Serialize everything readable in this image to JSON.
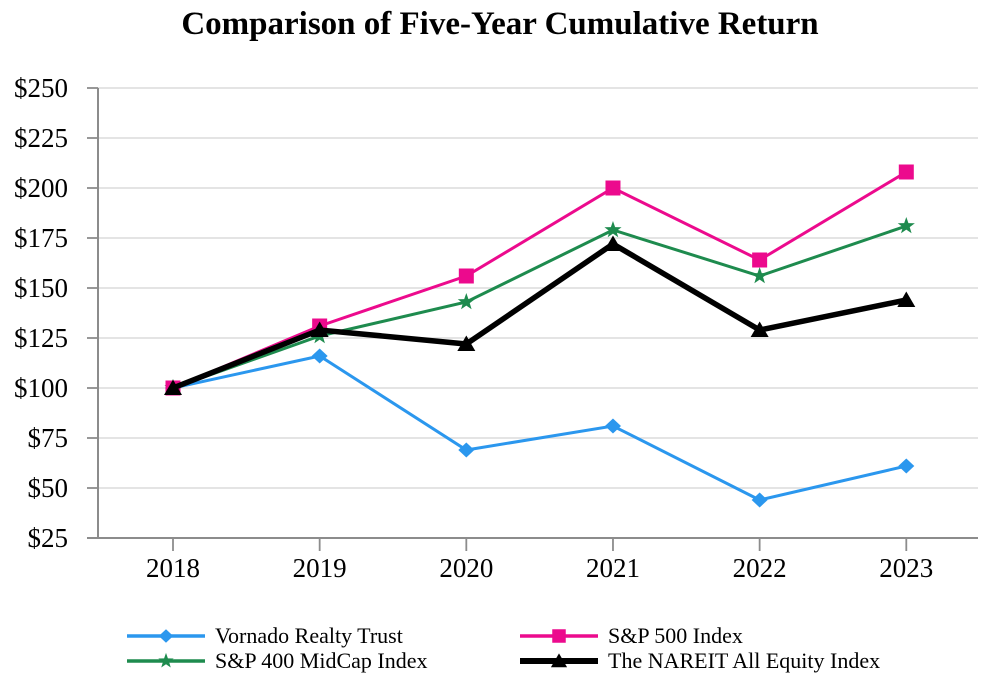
{
  "title": "Comparison of Five-Year Cumulative Return",
  "colors": {
    "vornado_blue": "#2B97EE",
    "sp500_pink": "#EC0A8D",
    "sp400_green": "#1E8B4E",
    "nareit_black": "#000000",
    "gridline": "#DCDCDC",
    "axis": "#8C8C8C",
    "text": "#000000",
    "background": "#FFFFFF"
  },
  "chart_data": {
    "type": "line",
    "title": "Comparison of Five-Year Cumulative Return",
    "x": [
      "2018",
      "2019",
      "2020",
      "2021",
      "2022",
      "2023"
    ],
    "series": [
      {
        "name": "Vornado Realty Trust",
        "marker": "diamond",
        "color": "#2B97EE",
        "line_width": 3,
        "values": [
          100,
          116,
          69,
          81,
          44,
          61
        ]
      },
      {
        "name": "S&P 500 Index",
        "marker": "square",
        "color": "#EC0A8D",
        "line_width": 3,
        "values": [
          100,
          131,
          156,
          200,
          164,
          208
        ]
      },
      {
        "name": "S&P 400 MidCap Index",
        "marker": "star",
        "color": "#1E8B4E",
        "line_width": 3,
        "values": [
          100,
          126,
          143,
          179,
          156,
          181
        ]
      },
      {
        "name": "The NAREIT All Equity Index",
        "marker": "triangle",
        "color": "#000000",
        "line_width": 5.5,
        "values": [
          100,
          129,
          122,
          172,
          129,
          144
        ]
      }
    ],
    "y_ticks": [
      25,
      50,
      75,
      100,
      125,
      150,
      175,
      200,
      225,
      250
    ],
    "y_tick_labels": [
      "$25",
      "$50",
      "$75",
      "$100",
      "$125",
      "$150",
      "$175",
      "$200",
      "$225",
      "$250"
    ],
    "ylim": [
      25,
      250
    ],
    "grid": "horizontal",
    "legend_position": "bottom"
  }
}
